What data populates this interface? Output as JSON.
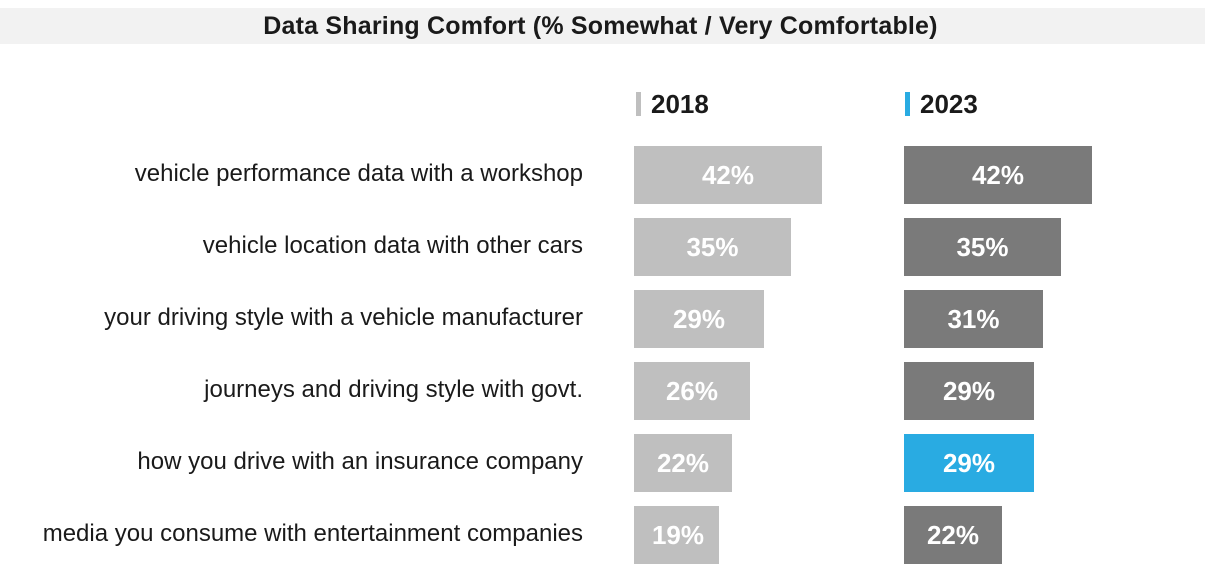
{
  "chart_data": {
    "type": "bar",
    "orientation": "horizontal",
    "title": "Data Sharing Comfort (% Somewhat / Very Comfortable)",
    "categories": [
      "vehicle performance data with a workshop",
      "vehicle location data with other cars",
      "your driving style with a vehicle manufacturer",
      "journeys and driving style with govt.",
      "how you drive with an insurance company",
      "media you consume with entertainment companies"
    ],
    "series": [
      {
        "name": "2018",
        "color": "#bfbfbf",
        "values": [
          42,
          35,
          29,
          26,
          22,
          19
        ],
        "labels": [
          "42%",
          "35%",
          "29%",
          "26%",
          "22%",
          "19%"
        ]
      },
      {
        "name": "2023",
        "color": "#7a7a7a",
        "highlight_color": "#29abe2",
        "highlight_index": 4,
        "values": [
          42,
          35,
          31,
          29,
          29,
          22
        ],
        "labels": [
          "42%",
          "35%",
          "31%",
          "29%",
          "29%",
          "22%"
        ]
      }
    ],
    "legend_marker_colors": [
      "#bfbfbf",
      "#29abe2"
    ],
    "grid": false,
    "legend": "top"
  }
}
